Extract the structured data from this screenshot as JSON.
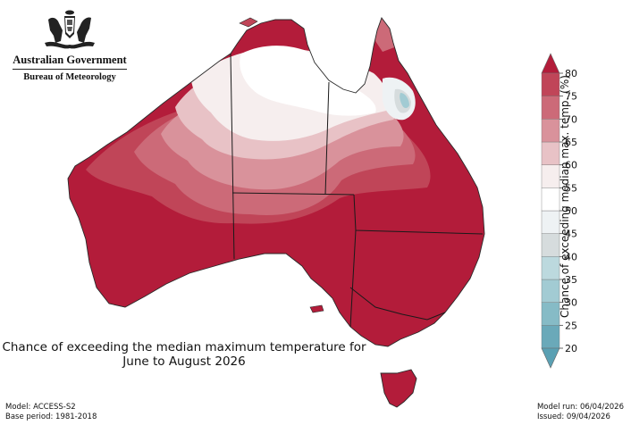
{
  "header": {
    "org_name": "Australian Government",
    "bureau_name": "Bureau of Meteorology",
    "logo_icon": "coat-of-arms-icon"
  },
  "map": {
    "title_line1": "Chance of exceeding the median maximum temperature for",
    "title_line2": "June to August 2026",
    "region": "Australia",
    "colors": {
      "c20": "#6aa9b9",
      "c25": "#86bbc6",
      "c30": "#a2cbd3",
      "c35": "#bcd9de",
      "c40": "#d6dcdd",
      "c45": "#eef2f4",
      "c50": "#ffffff",
      "c55": "#f6eeee",
      "c60": "#e8c2c6",
      "c65": "#d9929b",
      "c70": "#cc6a78",
      "c75": "#c04558",
      "c80": "#b31c3a"
    }
  },
  "colorbar": {
    "label": "Chance of exceeding median max. temp. (%)",
    "ticks": [
      "80",
      "75",
      "70",
      "65",
      "60",
      "55",
      "50",
      "45",
      "40",
      "35",
      "30",
      "25",
      "20"
    ],
    "colors": [
      "#6aa9b9",
      "#86bbc6",
      "#a2cbd3",
      "#bcd9de",
      "#d6dcdd",
      "#eef2f4",
      "#ffffff",
      "#f6eeee",
      "#e8c2c6",
      "#d9929b",
      "#cc6a78",
      "#c04558"
    ],
    "extend_min_color": "#5aa0b3",
    "extend_max_color": "#b31c3a"
  },
  "footer": {
    "model": "Model: ACCESS-S2",
    "base_period": "Base period: 1981-2018",
    "model_run": "Model run: 06/04/2026",
    "issued": "Issued: 09/04/2026"
  }
}
